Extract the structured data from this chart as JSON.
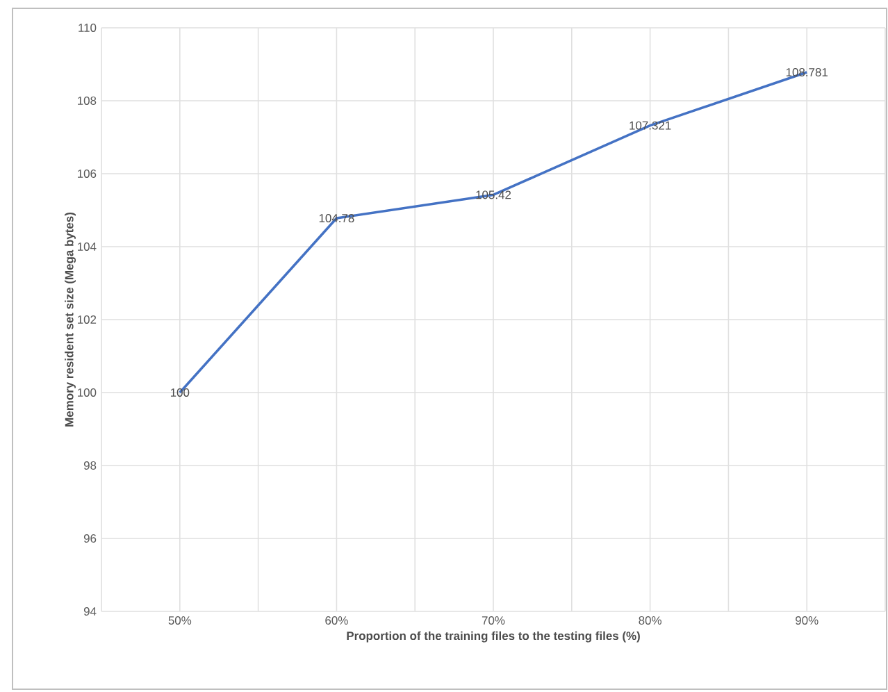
{
  "chart_data": {
    "type": "line",
    "xlabel": "Proportion of the training files to the testing files (%)",
    "ylabel": "Memory resident set size (Mega bytes)",
    "categories": [
      "50%",
      "60%",
      "70%",
      "80%",
      "90%"
    ],
    "series": [
      {
        "color": "#4472c4",
        "values": [
          100,
          104.78,
          105.42,
          107.321,
          108.781
        ]
      }
    ],
    "ylim": [
      94,
      110
    ],
    "yticks": [
      94,
      96,
      98,
      100,
      102,
      104,
      106,
      108,
      110
    ],
    "grid": true,
    "data_labels": true,
    "marker": "none",
    "line_style": "solid"
  }
}
